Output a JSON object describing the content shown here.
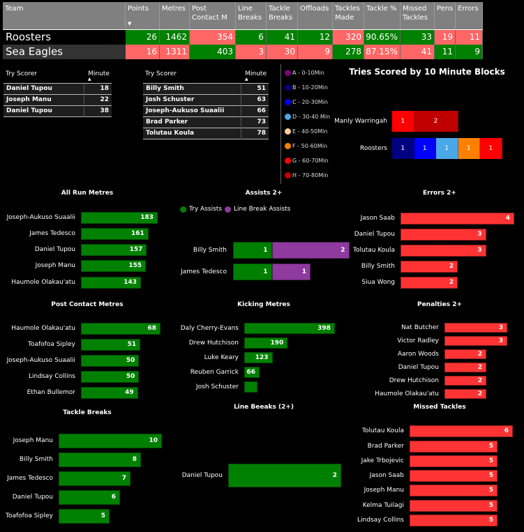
{
  "stats_table": {
    "columns": [
      "Team",
      "Points",
      "Metres",
      "Post Contact M",
      "Line Breaks",
      "Tackle Breaks",
      "Offloads",
      "Tackles Made",
      "Tackle %",
      "Missed Tackles",
      "Pens",
      "Errors"
    ],
    "sort_indicator": "▼",
    "rows": [
      {
        "team": "Roosters",
        "values": [
          "26",
          "1462",
          "354",
          "6",
          "41",
          "12",
          "320",
          "90.65%",
          "33",
          "19",
          "11"
        ],
        "status": [
          "g",
          "g",
          "r",
          "g",
          "g",
          "g",
          "r",
          "g",
          "g",
          "r",
          "r"
        ]
      },
      {
        "team": "Sea Eagles",
        "values": [
          "16",
          "1311",
          "403",
          "3",
          "30",
          "9",
          "278",
          "87.15%",
          "41",
          "11",
          "9"
        ],
        "status": [
          "r",
          "r",
          "g",
          "r",
          "r",
          "r",
          "g",
          "r",
          "r",
          "g",
          "g"
        ]
      }
    ]
  },
  "colors": {
    "good": "#008000",
    "bad": "#ff6666",
    "bar_green": "#008000",
    "bar_red": "#ff3333",
    "purple": "#8e3a9e"
  },
  "try_scorers_1": {
    "header": [
      "Try Scorer",
      "Minute"
    ],
    "sort_indicator": "▲",
    "rows": [
      [
        "Daniel Tupou",
        "18"
      ],
      [
        "Joseph Manu",
        "22"
      ],
      [
        "Daniel Tupou",
        "38"
      ]
    ]
  },
  "try_scorers_2": {
    "header": [
      "Try Scorer",
      "Minute"
    ],
    "sort_indicator": "▲",
    "rows": [
      [
        "Billy Smith",
        "51"
      ],
      [
        "Josh Schuster",
        "63"
      ],
      [
        "Joseph-Aukuso Suaalii",
        "66"
      ],
      [
        "Brad Parker",
        "73"
      ],
      [
        "Tolutau Koula",
        "78"
      ]
    ]
  },
  "legend": [
    {
      "label": "A - 0-10Min",
      "color": "#800080"
    },
    {
      "label": "B - 10-20Min",
      "color": "#000080"
    },
    {
      "label": "C - 20-30Min",
      "color": "#0000ff"
    },
    {
      "label": "D - 30-40 Min",
      "color": "#4aa8e8"
    },
    {
      "label": "E - 40-50Min",
      "color": "#ffcc99"
    },
    {
      "label": "F - 50-60Min",
      "color": "#ff8000"
    },
    {
      "label": "G - 60-70Min",
      "color": "#ff0000"
    },
    {
      "label": "H - 70-80Min",
      "color": "#c00000"
    }
  ],
  "chart_data": [
    {
      "type": "stacked-bar",
      "title": "Tries Scored by 10 Minute Blocks",
      "categories": [
        "Manly Warringah",
        "Roosters"
      ],
      "series": [
        [
          {
            "block": "G",
            "value": 1
          },
          {
            "block": "H",
            "value": 2
          }
        ],
        [
          {
            "block": "B",
            "value": 1
          },
          {
            "block": "C",
            "value": 1
          },
          {
            "block": "D",
            "value": 1
          },
          {
            "block": "F",
            "value": 1
          },
          {
            "block": "G",
            "value": 1
          }
        ]
      ]
    },
    {
      "id": "run",
      "type": "bar",
      "title": "All Run Metres",
      "categories": [
        "Joseph-Aukuso Suaalii",
        "James Tedesco",
        "Daniel Tupou",
        "Joseph Manu",
        "Haumole Olakau'atu"
      ],
      "values": [
        183,
        161,
        157,
        155,
        143
      ],
      "color": "green"
    },
    {
      "id": "assists",
      "type": "stacked-bar",
      "title": "Assists 2+",
      "legend": [
        "Try Assists",
        "Line Break Assists"
      ],
      "categories": [
        "Billy Smith",
        "James Tedesco"
      ],
      "series": [
        {
          "name": "Try Assists",
          "values": [
            1,
            1
          ]
        },
        {
          "name": "Line Break Assists",
          "values": [
            2,
            1
          ]
        }
      ]
    },
    {
      "id": "errors",
      "type": "bar",
      "title": "Errors 2+",
      "categories": [
        "Jason Saab",
        "Daniel Tupou",
        "Tolutau Koula",
        "Billy Smith",
        "Siua Wong"
      ],
      "values": [
        4,
        3,
        3,
        2,
        2
      ],
      "color": "red"
    },
    {
      "id": "pcm",
      "type": "bar",
      "title": "Post Contact Metres",
      "categories": [
        "Haumole Olakau'atu",
        "Toafofoa Sipley",
        "Joseph-Aukuso Suaalii",
        "Lindsay Collins",
        "Ethan Bullemor"
      ],
      "values": [
        68,
        51,
        50,
        50,
        49
      ],
      "color": "green"
    },
    {
      "id": "kick",
      "type": "bar",
      "title": "Kicking Metres",
      "categories": [
        "Daly Cherry-Evans",
        "Drew Hutchison",
        "Luke Keary",
        "Reuben Garrick",
        "Josh Schuster"
      ],
      "values": [
        398,
        190,
        123,
        66,
        58
      ],
      "hide_label": [
        false,
        false,
        false,
        false,
        true
      ],
      "color": "green"
    },
    {
      "id": "pens",
      "type": "bar",
      "title": "Penalties 2+",
      "categories": [
        "Nat Butcher",
        "Victor Radley",
        "Aaron Woods",
        "Daniel Tupou",
        "Drew Hutchison",
        "Haumole Olakau'atu"
      ],
      "values": [
        3,
        3,
        2,
        2,
        2,
        2
      ],
      "color": "red"
    },
    {
      "id": "lb",
      "type": "bar",
      "title": "Line Beeaks (2+)",
      "categories": [
        "Daniel Tupou"
      ],
      "values": [
        2
      ],
      "color": "green"
    },
    {
      "id": "missed",
      "type": "bar",
      "title": "Missed Tackles",
      "categories": [
        "Tolutau Koula",
        "Brad Parker",
        "Jake Trbojevic",
        "Jason Saab",
        "Joseph Manu",
        "Kelma Tuilagi",
        "Lindsay Collins"
      ],
      "values": [
        6,
        5,
        5,
        5,
        5,
        5,
        5
      ],
      "color": "red"
    },
    {
      "id": "tb",
      "type": "bar",
      "title": "Tackle Breaks",
      "categories": [
        "Joseph Manu",
        "Billy Smith",
        "James Tedesco",
        "Daniel Tupou",
        "Toafofoa Sipley"
      ],
      "values": [
        10,
        8,
        7,
        6,
        5
      ],
      "color": "green"
    }
  ]
}
